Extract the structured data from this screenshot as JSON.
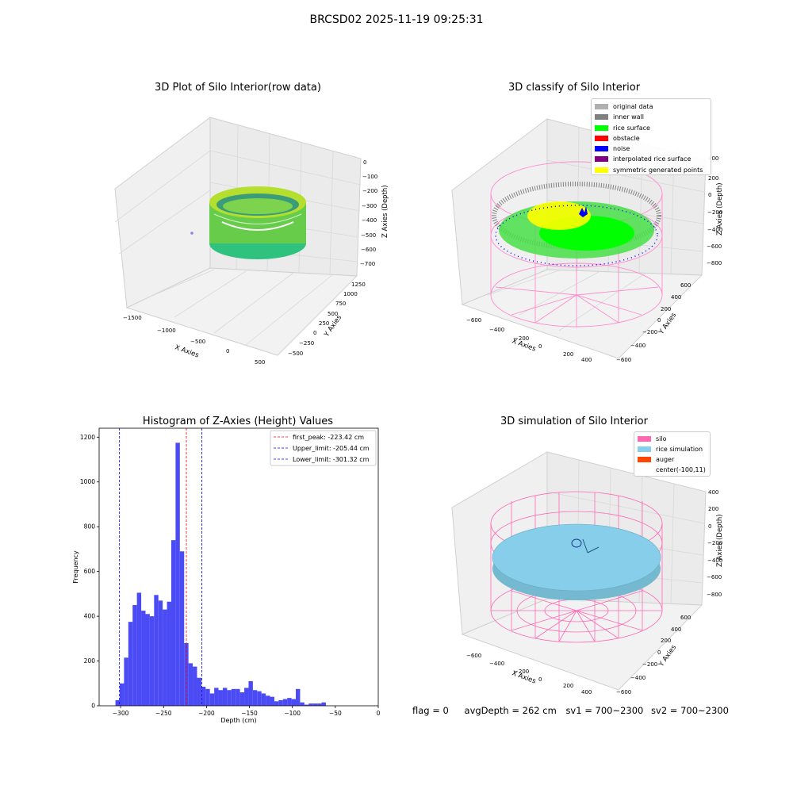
{
  "suptitle": "BRCSD02 2025-11-19 09:25:31",
  "colors": {
    "histogram_bar": "#4b4bf5",
    "first_peak_line": "#ff0000",
    "limit_lines": "#0000ff",
    "silo_wire": "#ff69b4",
    "rice_simulation": "#87ceeb",
    "auger": "#ff4500",
    "rice_surface": "#00ff00",
    "noise": "#0000ff",
    "symmetric_points": "#ffff00",
    "inner_wall": "#808080",
    "original_data": "#b0b0b0",
    "obstacle": "#ff0000",
    "interpolated_rice_surface": "#800080"
  },
  "panels": {
    "raw": {
      "title": "3D Plot of Silo Interior(row data)",
      "xlabel": "X Axies",
      "ylabel": "Y Axies",
      "zlabel": "Z Axies (Depth)",
      "xticks": [
        "−1500",
        "−1000",
        "−500",
        "0",
        "500"
      ],
      "yticks": [
        "−500",
        "−250",
        "0",
        "250",
        "500",
        "750",
        "1000",
        "1250"
      ],
      "zticks": [
        "0",
        "−100",
        "−200",
        "−300",
        "−400",
        "−500",
        "−600",
        "−700"
      ]
    },
    "classify": {
      "title": "3D classify of Silo Interior",
      "xlabel": "X Axies",
      "ylabel": "Y Axies",
      "zlabel": "Z Axies (Depth)",
      "xticks": [
        "−600",
        "−400",
        "−200",
        "0",
        "200",
        "400"
      ],
      "yticks": [
        "−600",
        "−400",
        "−200",
        "0",
        "200",
        "400",
        "600"
      ],
      "zticks": [
        "200",
        "0",
        "−200",
        "−400",
        "−600",
        "−800"
      ],
      "ztop_partial": "400",
      "legend": [
        {
          "label": "original data",
          "color": "#b0b0b0"
        },
        {
          "label": "inner wall",
          "color": "#808080"
        },
        {
          "label": "rice surface",
          "color": "#00ff00"
        },
        {
          "label": "obstacle",
          "color": "#ff0000"
        },
        {
          "label": "noise",
          "color": "#0000ff"
        },
        {
          "label": "interpolated rice surface",
          "color": "#800080"
        },
        {
          "label": "symmetric generated points",
          "color": "#ffff00"
        }
      ]
    },
    "simulation": {
      "title": "3D simulation of Silo Interior",
      "xlabel": "X Axies",
      "ylabel": "Y Axies",
      "zlabel": "Z Axies (Depth)",
      "xticks": [
        "−600",
        "−400",
        "−200",
        "0",
        "200",
        "400"
      ],
      "yticks": [
        "−600",
        "−400",
        "−200",
        "0",
        "200",
        "400",
        "600"
      ],
      "zticks": [
        "400",
        "200",
        "0",
        "−200",
        "−400",
        "−600",
        "−800"
      ],
      "legend": [
        {
          "label": "silo",
          "color": "#ff69b4"
        },
        {
          "label": "rice simulation",
          "color": "#87ceeb"
        },
        {
          "label": "auger",
          "color": "#ff4500"
        },
        {
          "label": "center(-100,11)",
          "color": ""
        }
      ]
    }
  },
  "footer": {
    "flag": "flag = 0",
    "avg_depth": "avgDepth = 262 cm",
    "sv1": "sv1 = 700~2300",
    "sv2": "sv2 = 700~2300"
  },
  "chart_data": [
    {
      "type": "bar",
      "title": "Histogram of Z-Axies (Height) Values",
      "xlabel": "Depth (cm)",
      "ylabel": "Frequency",
      "xlim": [
        -325,
        0
      ],
      "ylim": [
        0,
        1240
      ],
      "xticks": [
        -300,
        -250,
        -200,
        -150,
        -100,
        -50,
        0
      ],
      "yticks": [
        0,
        200,
        400,
        600,
        800,
        1000,
        1200
      ],
      "bin_start": -306,
      "bin_width": 5,
      "values": [
        25,
        100,
        215,
        375,
        450,
        505,
        425,
        410,
        400,
        495,
        470,
        430,
        465,
        740,
        1175,
        690,
        280,
        190,
        175,
        125,
        85,
        75,
        55,
        80,
        70,
        80,
        70,
        75,
        75,
        60,
        80,
        110,
        70,
        65,
        55,
        45,
        40,
        20,
        25,
        30,
        35,
        30,
        75,
        15,
        5,
        10,
        10,
        10,
        15
      ],
      "vlines": [
        {
          "label": "first_peak: -223.42 cm",
          "x": -223.42,
          "color": "#ff0000"
        },
        {
          "label": "Upper_limit: -205.44 cm",
          "x": -205.44,
          "color": "#0000ff"
        },
        {
          "label": "Lower_limit: -301.32 cm",
          "x": -301.32,
          "color": "#0000ff"
        }
      ],
      "legend_position": "upper right",
      "grid": false
    }
  ]
}
